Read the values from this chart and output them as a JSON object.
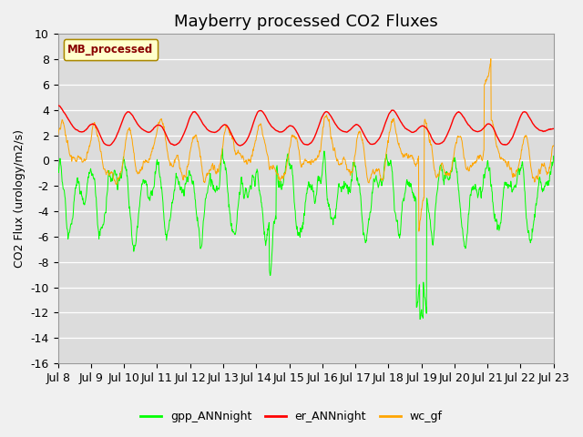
{
  "title": "Mayberry processed CO2 Fluxes",
  "ylabel": "CO2 Flux (urology/m2/s)",
  "ylim": [
    -16,
    10
  ],
  "yticks": [
    -16,
    -14,
    -12,
    -10,
    -8,
    -6,
    -4,
    -2,
    0,
    2,
    4,
    6,
    8,
    10
  ],
  "xtick_labels": [
    "Jul 8",
    "Jul 9",
    "Jul 10",
    "Jul 11",
    "Jul 12",
    "Jul 13",
    "Jul 14",
    "Jul 15",
    "Jul 16",
    "Jul 17",
    "Jul 18",
    "Jul 19",
    "Jul 20",
    "Jul 21",
    "Jul 22",
    "Jul 23"
  ],
  "legend_label": "MB_processed",
  "legend_entries": [
    "gpp_ANNnight",
    "er_ANNnight",
    "wc_gf"
  ],
  "line_colors": [
    "#00ff00",
    "#ff0000",
    "#ffa500"
  ],
  "axes_bg": "#dcdcdc",
  "fig_bg": "#f0f0f0",
  "title_fontsize": 13,
  "label_fontsize": 9,
  "tick_fontsize": 9,
  "n_points": 1440,
  "seed": 7
}
